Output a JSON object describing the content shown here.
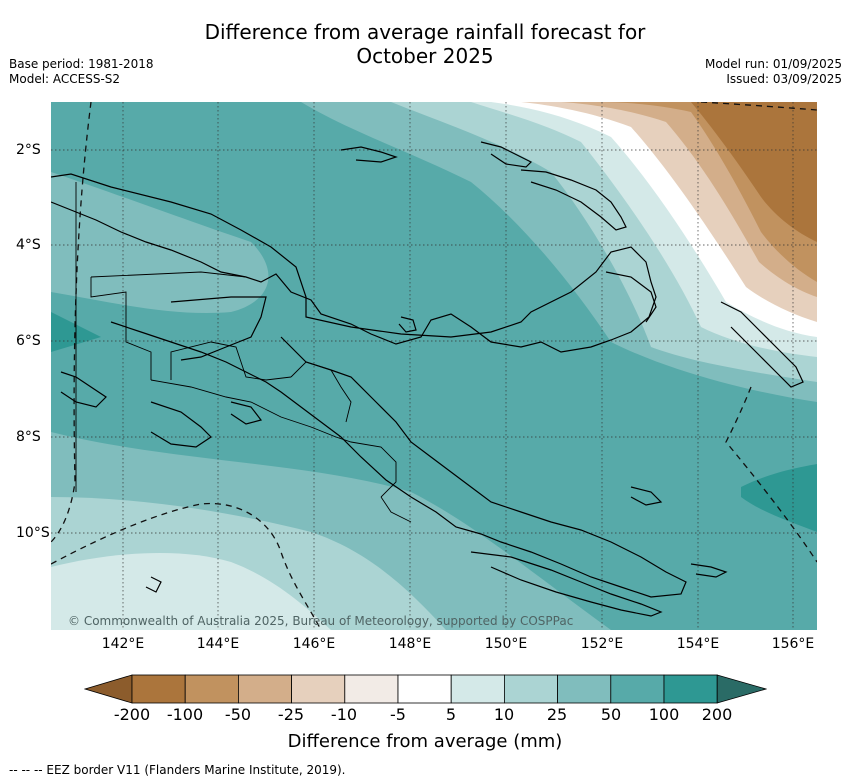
{
  "header": {
    "title_line1": "Difference from average rainfall forecast for",
    "title_line2": "October 2025",
    "base_period": "Base period: 1981-2018",
    "model": "Model: ACCESS-S2",
    "model_run": "Model run: 01/09/2025",
    "issued": "Issued: 03/09/2025"
  },
  "map": {
    "region": "Papua New Guinea",
    "copyright": "© Commonwealth of Australia 2025, Bureau of Meteorology, supported by COSPPac",
    "x_ticks": [
      "142°E",
      "144°E",
      "146°E",
      "148°E",
      "150°E",
      "152°E",
      "154°E",
      "156°E"
    ],
    "y_ticks": [
      "2°S",
      "4°S",
      "6°S",
      "8°S",
      "10°S"
    ],
    "gridlines": true
  },
  "colorbar": {
    "title": "Difference from average (mm)",
    "labels": [
      "-200",
      "-100",
      "-50",
      "-25",
      "-10",
      "-5",
      "5",
      "10",
      "25",
      "50",
      "100",
      "200"
    ],
    "colors": [
      "#8c5c2c",
      "#ab753c",
      "#c1925f",
      "#d3ae8a",
      "#e6d0bd",
      "#f2ebe6",
      "#ffffff",
      "#d4e9e8",
      "#abd4d3",
      "#80bdbd",
      "#57aaa9",
      "#2e9893",
      "#2a6b66"
    ]
  },
  "legend": {
    "eez_text": "--  --  -- EEZ border V11 (Flanders Marine Institute, 2019)."
  }
}
